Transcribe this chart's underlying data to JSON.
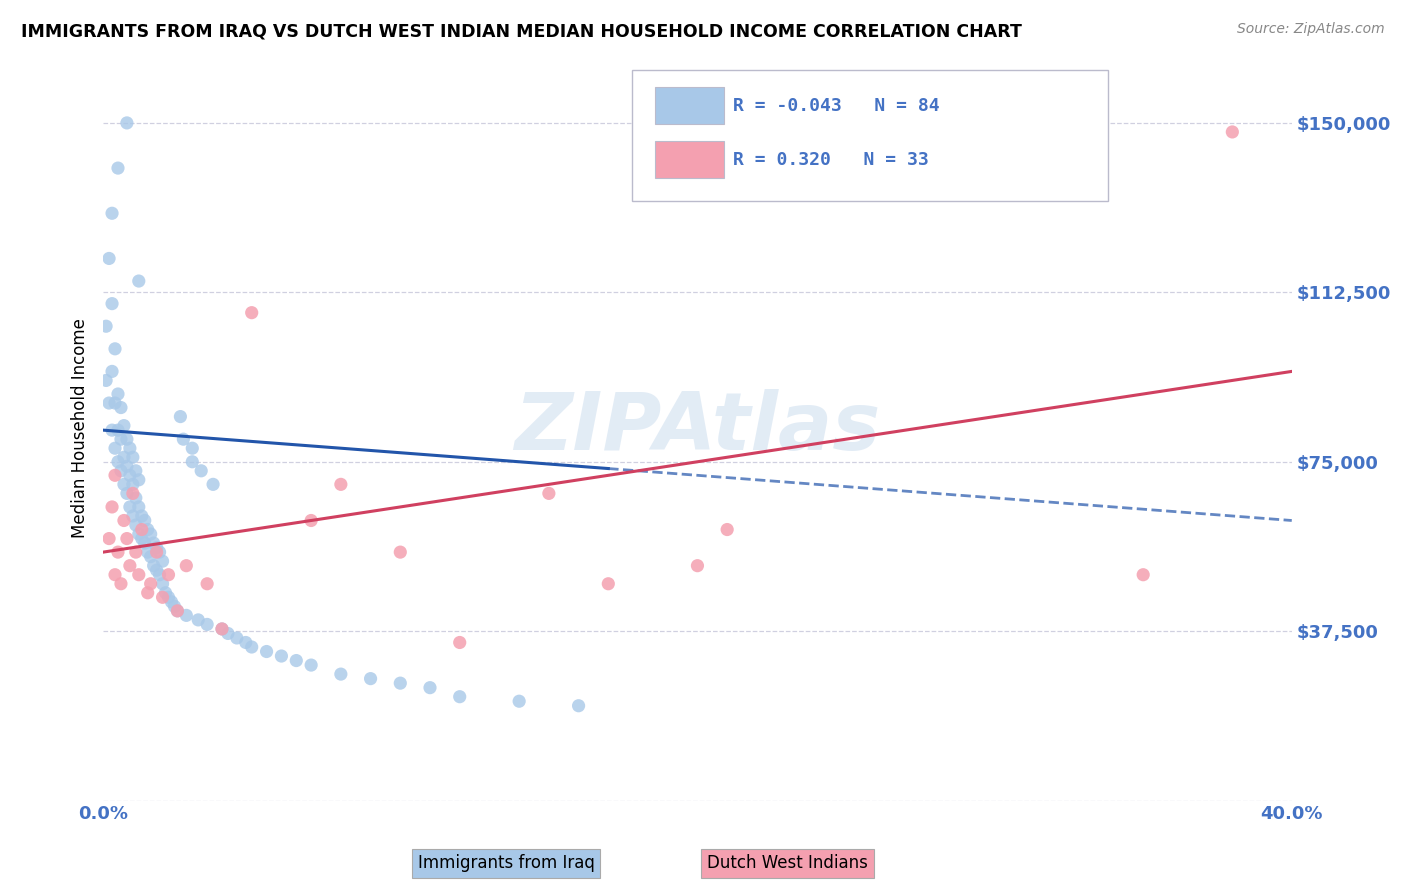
{
  "title": "IMMIGRANTS FROM IRAQ VS DUTCH WEST INDIAN MEDIAN HOUSEHOLD INCOME CORRELATION CHART",
  "source": "Source: ZipAtlas.com",
  "ylabel": "Median Household Income",
  "xlim": [
    0.0,
    0.4
  ],
  "ylim": [
    0,
    165000
  ],
  "xticks": [
    0.0,
    0.05,
    0.1,
    0.15,
    0.2,
    0.25,
    0.3,
    0.35,
    0.4
  ],
  "xticklabels": [
    "0.0%",
    "",
    "",
    "",
    "",
    "",
    "",
    "",
    "40.0%"
  ],
  "yticks": [
    0,
    37500,
    75000,
    112500,
    150000
  ],
  "yticklabels": [
    "",
    "$37,500",
    "$75,000",
    "$112,500",
    "$150,000"
  ],
  "legend_r": [
    -0.043,
    0.32
  ],
  "legend_n": [
    84,
    33
  ],
  "blue_scatter_color": "#a8c8e8",
  "pink_scatter_color": "#f4a0b0",
  "blue_line_color": "#2255aa",
  "pink_line_color": "#d04060",
  "axis_label_color": "#4472c4",
  "grid_color": "#d0d0e0",
  "watermark": "ZIPAtlas",
  "iraq_x": [
    0.001,
    0.001,
    0.002,
    0.002,
    0.003,
    0.003,
    0.003,
    0.004,
    0.004,
    0.004,
    0.005,
    0.005,
    0.005,
    0.006,
    0.006,
    0.006,
    0.007,
    0.007,
    0.007,
    0.008,
    0.008,
    0.008,
    0.009,
    0.009,
    0.009,
    0.01,
    0.01,
    0.01,
    0.011,
    0.011,
    0.011,
    0.012,
    0.012,
    0.012,
    0.013,
    0.013,
    0.014,
    0.014,
    0.015,
    0.015,
    0.016,
    0.016,
    0.017,
    0.017,
    0.018,
    0.018,
    0.019,
    0.019,
    0.02,
    0.02,
    0.021,
    0.022,
    0.023,
    0.024,
    0.025,
    0.026,
    0.027,
    0.028,
    0.03,
    0.03,
    0.032,
    0.033,
    0.035,
    0.037,
    0.04,
    0.042,
    0.045,
    0.048,
    0.05,
    0.055,
    0.06,
    0.065,
    0.07,
    0.08,
    0.09,
    0.1,
    0.11,
    0.12,
    0.14,
    0.16,
    0.003,
    0.005,
    0.008,
    0.012
  ],
  "iraq_y": [
    93000,
    105000,
    88000,
    120000,
    82000,
    95000,
    110000,
    78000,
    88000,
    100000,
    75000,
    82000,
    90000,
    73000,
    80000,
    87000,
    70000,
    76000,
    83000,
    68000,
    74000,
    80000,
    65000,
    72000,
    78000,
    63000,
    70000,
    76000,
    61000,
    67000,
    73000,
    59000,
    65000,
    71000,
    58000,
    63000,
    57000,
    62000,
    55000,
    60000,
    54000,
    59000,
    52000,
    57000,
    51000,
    56000,
    50000,
    55000,
    48000,
    53000,
    46000,
    45000,
    44000,
    43000,
    42000,
    85000,
    80000,
    41000,
    78000,
    75000,
    40000,
    73000,
    39000,
    70000,
    38000,
    37000,
    36000,
    35000,
    34000,
    33000,
    32000,
    31000,
    30000,
    28000,
    27000,
    26000,
    25000,
    23000,
    22000,
    21000,
    130000,
    140000,
    150000,
    115000
  ],
  "dutch_x": [
    0.002,
    0.003,
    0.004,
    0.004,
    0.005,
    0.006,
    0.007,
    0.008,
    0.009,
    0.01,
    0.011,
    0.012,
    0.013,
    0.015,
    0.016,
    0.018,
    0.02,
    0.022,
    0.025,
    0.028,
    0.035,
    0.04,
    0.05,
    0.07,
    0.08,
    0.1,
    0.12,
    0.15,
    0.17,
    0.2,
    0.21,
    0.35,
    0.38
  ],
  "dutch_y": [
    58000,
    65000,
    50000,
    72000,
    55000,
    48000,
    62000,
    58000,
    52000,
    68000,
    55000,
    50000,
    60000,
    46000,
    48000,
    55000,
    45000,
    50000,
    42000,
    52000,
    48000,
    38000,
    108000,
    62000,
    70000,
    55000,
    35000,
    68000,
    48000,
    52000,
    60000,
    50000,
    148000
  ],
  "iraq_line_solid_end": 0.17,
  "iraq_line_dashed_start": 0.17,
  "iraq_line_end": 0.4
}
